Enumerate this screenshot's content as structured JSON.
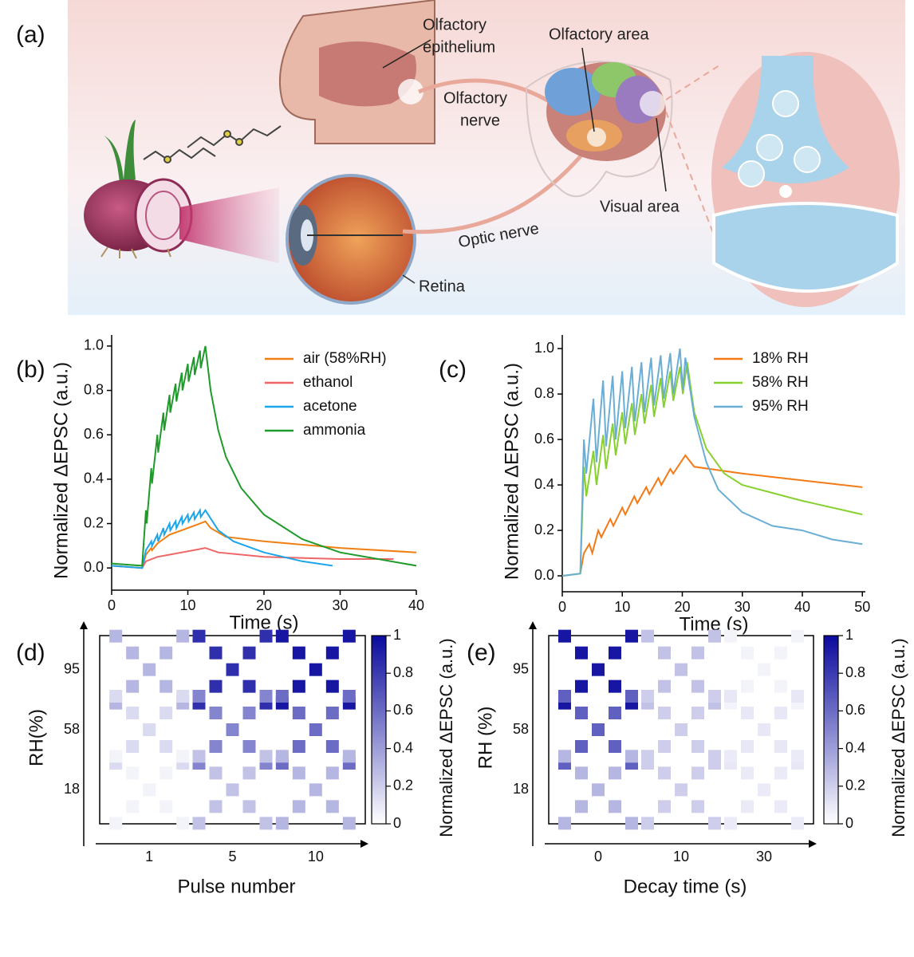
{
  "illustration": {
    "panel_label": "(a)",
    "olfactory_epithelium": [
      "Olfactory",
      "epithelium"
    ],
    "olfactory_nerve": [
      "Olfactory",
      "nerve"
    ],
    "olfactory_area": "Olfactory area",
    "visual_area": "Visual area",
    "optic_nerve": "Optic nerve",
    "retina": "Retina"
  },
  "chart_data": [
    {
      "type": "line",
      "panel_label": "(b)",
      "xlabel": "Time (s)",
      "ylabel": "Normalized ΔEPSC (a.u.)",
      "xlim": [
        0,
        40
      ],
      "ylim": [
        -0.1,
        1.05
      ],
      "xticks": [
        0,
        10,
        20,
        30,
        40
      ],
      "yticks": [
        {
          "value": 0,
          "label": "0.0"
        },
        0.2,
        0.4,
        0.6,
        0.8,
        {
          "value": 1,
          "label": "1.0"
        }
      ],
      "legend": "upper right",
      "series": [
        {
          "name": "air (58%RH)",
          "color": "#f07f13",
          "x": [
            0,
            4,
            4.5,
            5.2,
            5.3,
            6,
            6.8,
            7.6,
            8.4,
            9.2,
            10,
            10.8,
            11.6,
            12.3,
            13,
            15,
            20,
            30,
            40
          ],
          "values": [
            0.01,
            0,
            0.06,
            0.09,
            0.08,
            0.11,
            0.13,
            0.15,
            0.16,
            0.17,
            0.18,
            0.19,
            0.2,
            0.21,
            0.18,
            0.14,
            0.12,
            0.09,
            0.07
          ]
        },
        {
          "name": "ethanol",
          "color": "#f06565",
          "x": [
            0,
            4,
            4.5,
            6,
            7.6,
            9.2,
            10.8,
            12.3,
            14,
            20,
            30,
            37
          ],
          "values": [
            0.01,
            0,
            0.03,
            0.05,
            0.06,
            0.07,
            0.08,
            0.09,
            0.07,
            0.05,
            0.04,
            0.04
          ]
        },
        {
          "name": "acetone",
          "color": "#1aa6e8",
          "x": [
            0,
            4,
            4.5,
            5.2,
            5.3,
            6,
            6.1,
            6.8,
            6.9,
            7.6,
            7.7,
            8.4,
            8.5,
            9.2,
            9.3,
            10,
            10.1,
            10.8,
            10.9,
            11.6,
            11.7,
            12.3,
            14,
            16,
            20,
            25,
            29
          ],
          "values": [
            0.01,
            0,
            0.08,
            0.12,
            0.1,
            0.15,
            0.12,
            0.18,
            0.15,
            0.2,
            0.17,
            0.21,
            0.18,
            0.23,
            0.2,
            0.24,
            0.21,
            0.25,
            0.22,
            0.26,
            0.23,
            0.26,
            0.17,
            0.12,
            0.07,
            0.03,
            0.01
          ]
        },
        {
          "name": "ammonia",
          "color": "#1f9a2b",
          "x": [
            0,
            4,
            4.5,
            4.6,
            5.2,
            5.3,
            6,
            6.1,
            6.8,
            6.9,
            7.6,
            7.7,
            8.4,
            8.5,
            9.2,
            9.3,
            10,
            10.1,
            10.8,
            10.9,
            11.6,
            11.7,
            12.3,
            13,
            14,
            15,
            17,
            20,
            25,
            30,
            35,
            40
          ],
          "values": [
            0.02,
            0.01,
            0.26,
            0.2,
            0.45,
            0.38,
            0.6,
            0.52,
            0.7,
            0.62,
            0.78,
            0.7,
            0.83,
            0.75,
            0.88,
            0.8,
            0.92,
            0.84,
            0.95,
            0.87,
            0.98,
            0.9,
            1.0,
            0.8,
            0.62,
            0.5,
            0.36,
            0.24,
            0.13,
            0.07,
            0.04,
            0.01
          ]
        }
      ]
    },
    {
      "type": "line",
      "panel_label": "(c)",
      "xlabel": "Time (s)",
      "ylabel": "Normalized ΔEPSC (a.u.)",
      "xlim": [
        0,
        50.5
      ],
      "ylim": [
        -0.07,
        1.06
      ],
      "xticks": [
        0,
        10,
        20,
        30,
        40,
        50
      ],
      "yticks": [
        {
          "value": 0,
          "label": "0.0"
        },
        0.2,
        0.4,
        0.6,
        0.8,
        {
          "value": 1,
          "label": "1.0"
        }
      ],
      "legend": "upper right",
      "series": [
        {
          "name": "18% RH",
          "color": "#f47a16",
          "x": [
            0,
            3,
            3.6,
            4.5,
            5,
            6,
            6.5,
            8,
            8.5,
            10,
            10.5,
            12,
            12.5,
            14,
            14.5,
            16,
            16.5,
            18,
            18.5,
            20,
            20.5,
            22,
            30,
            40,
            50
          ],
          "values": [
            0,
            0.01,
            0.1,
            0.14,
            0.1,
            0.2,
            0.17,
            0.25,
            0.22,
            0.3,
            0.27,
            0.35,
            0.32,
            0.39,
            0.36,
            0.43,
            0.4,
            0.47,
            0.45,
            0.51,
            0.53,
            0.48,
            0.45,
            0.42,
            0.39
          ]
        },
        {
          "name": "58% RH",
          "color": "#86d12e",
          "x": [
            0,
            3,
            3.6,
            4,
            5.2,
            5.7,
            6.8,
            7.3,
            8.4,
            8.9,
            10,
            10.5,
            11.6,
            12.1,
            13.2,
            13.7,
            14.8,
            15.3,
            16.4,
            16.9,
            18,
            18.5,
            19.6,
            20.1,
            20.8,
            22,
            24,
            27,
            30,
            40,
            50
          ],
          "values": [
            0,
            0.01,
            0.48,
            0.35,
            0.55,
            0.4,
            0.62,
            0.47,
            0.67,
            0.53,
            0.72,
            0.58,
            0.76,
            0.62,
            0.8,
            0.67,
            0.84,
            0.7,
            0.87,
            0.74,
            0.9,
            0.77,
            0.92,
            0.8,
            0.94,
            0.72,
            0.56,
            0.45,
            0.4,
            0.33,
            0.27
          ]
        },
        {
          "name": "95% RH",
          "color": "#6aaed6",
          "x": [
            0,
            3,
            3.6,
            4,
            5.2,
            5.7,
            6.8,
            7.3,
            8.4,
            8.9,
            10,
            10.5,
            11.6,
            12.1,
            13.2,
            13.7,
            14.8,
            15.3,
            16.4,
            16.9,
            18,
            18.5,
            19.6,
            20.1,
            20.5,
            22,
            24,
            26,
            30,
            35,
            40,
            45,
            50
          ],
          "values": [
            0,
            0.01,
            0.6,
            0.45,
            0.78,
            0.5,
            0.86,
            0.57,
            0.88,
            0.6,
            0.9,
            0.65,
            0.92,
            0.68,
            0.94,
            0.72,
            0.96,
            0.75,
            0.97,
            0.78,
            0.98,
            0.8,
            1.0,
            0.82,
            0.96,
            0.7,
            0.5,
            0.38,
            0.28,
            0.22,
            0.2,
            0.16,
            0.14
          ]
        }
      ]
    },
    {
      "type": "heatmap",
      "panel_label": "(d)",
      "xlabel": "Pulse number",
      "ylabel": "RH(%)",
      "x_categories": [
        "1",
        "5",
        "10"
      ],
      "y_categories": [
        "95",
        "58",
        "18"
      ],
      "values": [
        [
          0.3,
          0.85,
          0.95
        ],
        [
          0.15,
          0.5,
          0.6
        ],
        [
          0.05,
          0.25,
          0.3
        ]
      ],
      "colorbar": {
        "label": "Normalized ΔEPSC (a.u.)",
        "lim": [
          0,
          1
        ],
        "ticks": [
          0,
          0.2,
          0.4,
          0.6,
          0.8,
          1
        ],
        "colors": [
          "#ffffff",
          "#0a0a9e"
        ]
      }
    },
    {
      "type": "heatmap",
      "panel_label": "(e)",
      "xlabel": "Decay time (s)",
      "ylabel": "RH (%)",
      "x_categories": [
        "0",
        "10",
        "30"
      ],
      "y_categories": [
        "95",
        "58",
        "18"
      ],
      "values": [
        [
          0.95,
          0.25,
          0.05
        ],
        [
          0.65,
          0.2,
          0.1
        ],
        [
          0.3,
          0.2,
          0.08
        ]
      ],
      "colorbar": {
        "label": "Normalized ΔEPSC (a.u.)",
        "lim": [
          0,
          1
        ],
        "ticks": [
          0,
          0.2,
          0.4,
          0.6,
          0.8,
          1
        ],
        "colors": [
          "#ffffff",
          "#0a0a9e"
        ]
      }
    }
  ]
}
